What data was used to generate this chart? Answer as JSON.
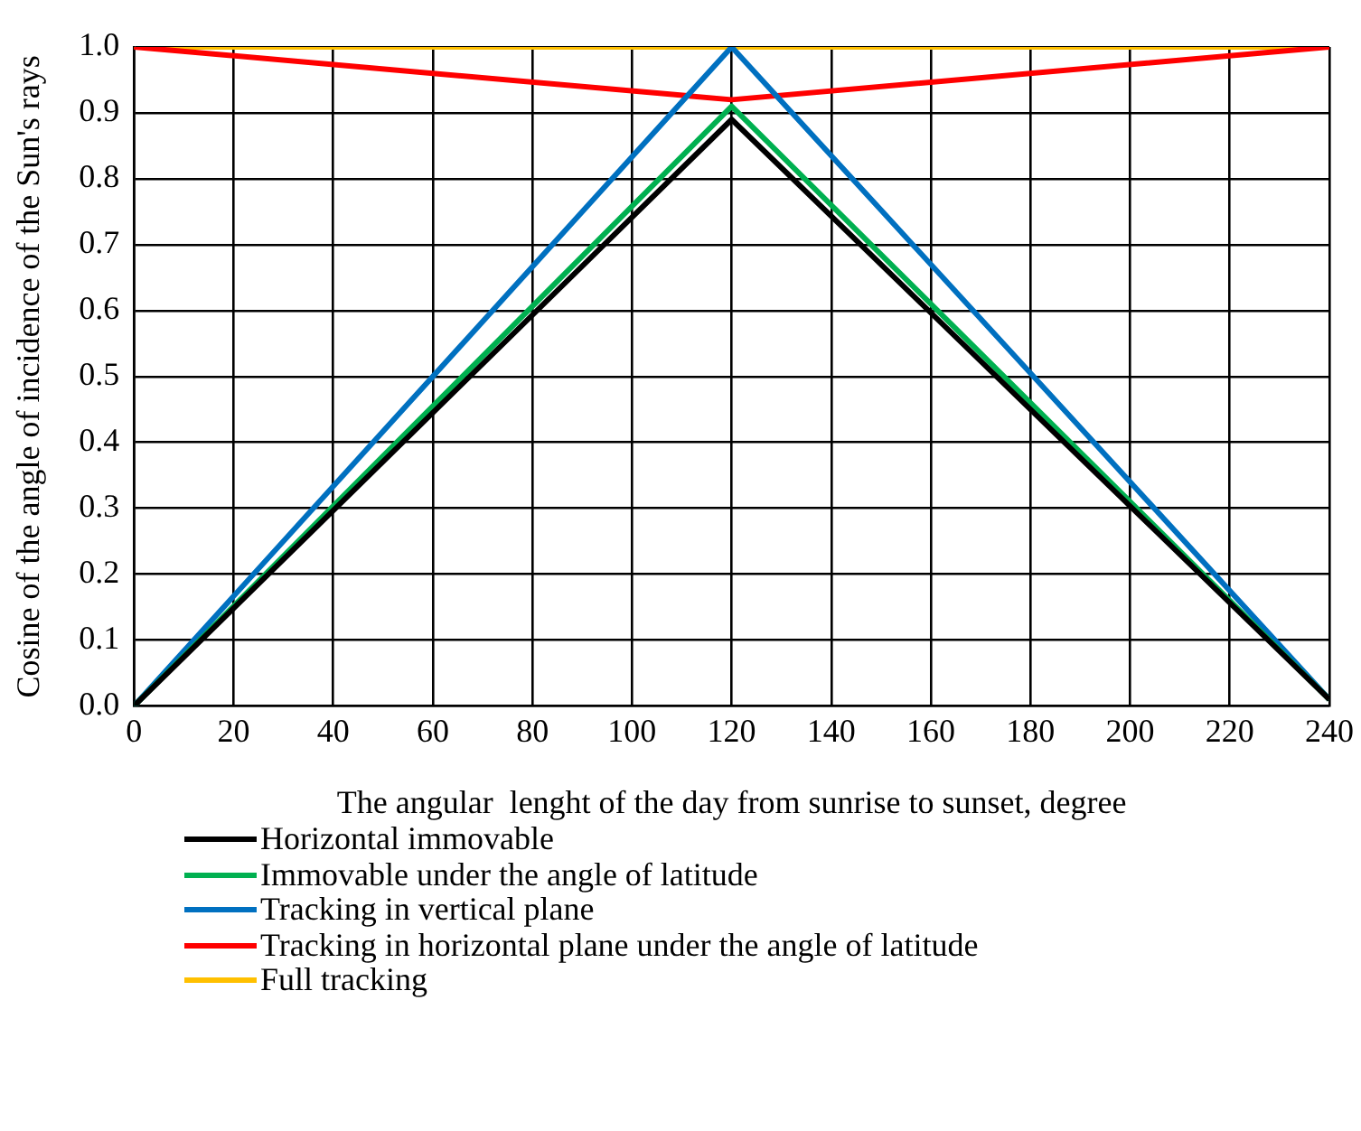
{
  "chart_data": {
    "type": "line",
    "xlabel": "The angular  lenght of the day from sunrise to sunset, degree",
    "ylabel": "Cosine of the angle of incidence of the Sun's rays",
    "x": [
      0,
      120,
      240
    ],
    "series": [
      {
        "name": "Horizontal immovable",
        "color": "#000000",
        "values": [
          0,
          0.89,
          0.01
        ]
      },
      {
        "name": "Immovable under the angle of latitude",
        "color": "#00b050",
        "values": [
          0,
          0.91,
          0.01
        ]
      },
      {
        "name": "Tracking in vertical plane",
        "color": "#0070c0",
        "values": [
          0,
          1.0,
          0.01
        ]
      },
      {
        "name": "Tracking in horizontal plane under the angle of latitude",
        "color": "#ff0000",
        "values": [
          1.0,
          0.92,
          1.0
        ]
      },
      {
        "name": "Full tracking",
        "color": "#ffc000",
        "values": [
          1.0,
          1.0,
          1.0
        ]
      }
    ],
    "xlim": [
      0,
      240
    ],
    "xticks": [
      0,
      20,
      40,
      60,
      80,
      100,
      120,
      140,
      160,
      180,
      200,
      220,
      240
    ],
    "ylim": [
      0,
      1
    ],
    "yticks": [
      {
        "value": 0,
        "label": "0.0"
      },
      {
        "value": 0.1,
        "label": "0.1"
      },
      {
        "value": 0.2,
        "label": "0.2"
      },
      {
        "value": 0.3,
        "label": "0.3"
      },
      {
        "value": 0.4,
        "label": "0.4"
      },
      {
        "value": 0.5,
        "label": "0.5"
      },
      {
        "value": 0.6,
        "label": "0.6"
      },
      {
        "value": 0.7,
        "label": "0.7"
      },
      {
        "value": 0.8,
        "label": "0.8"
      },
      {
        "value": 0.9,
        "label": "0.9"
      },
      {
        "value": 1,
        "label": "1.0"
      }
    ],
    "grid": true,
    "legend": "bottom",
    "marker": "none",
    "line_style": "solid"
  }
}
